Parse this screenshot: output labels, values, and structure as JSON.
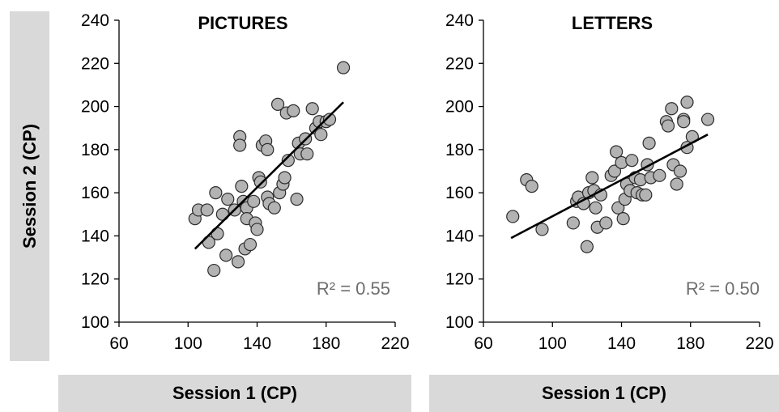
{
  "y_axis_label": "Session 2 (CP)",
  "x_axis_labels": [
    "Session 1 (CP)",
    "Session 1 (CP)"
  ],
  "chart_data": [
    {
      "type": "scatter",
      "title": "PICTURES",
      "xlabel": "Session 1 (CP)",
      "ylabel": "Session 2 (CP)",
      "xlim": [
        60,
        220
      ],
      "ylim": [
        100,
        240
      ],
      "xticks": [
        "60",
        "100",
        "140",
        "180",
        "220"
      ],
      "yticks": [
        "100",
        "120",
        "140",
        "160",
        "180",
        "200",
        "220",
        "240"
      ],
      "annotation": "R² = 0.55",
      "trendline": {
        "x": [
          104,
          190
        ],
        "y": [
          134,
          202
        ]
      },
      "grid": false,
      "points": [
        {
          "x": 104,
          "y": 148
        },
        {
          "x": 106,
          "y": 152
        },
        {
          "x": 111,
          "y": 152
        },
        {
          "x": 112,
          "y": 137
        },
        {
          "x": 115,
          "y": 124
        },
        {
          "x": 116,
          "y": 160
        },
        {
          "x": 117,
          "y": 141
        },
        {
          "x": 120,
          "y": 150
        },
        {
          "x": 122,
          "y": 131
        },
        {
          "x": 123,
          "y": 157
        },
        {
          "x": 127,
          "y": 152
        },
        {
          "x": 129,
          "y": 128
        },
        {
          "x": 130,
          "y": 186
        },
        {
          "x": 130,
          "y": 182
        },
        {
          "x": 131,
          "y": 163
        },
        {
          "x": 132,
          "y": 156
        },
        {
          "x": 133,
          "y": 134
        },
        {
          "x": 134,
          "y": 153
        },
        {
          "x": 134,
          "y": 148
        },
        {
          "x": 136,
          "y": 136
        },
        {
          "x": 138,
          "y": 156
        },
        {
          "x": 139,
          "y": 146
        },
        {
          "x": 140,
          "y": 143
        },
        {
          "x": 141,
          "y": 167
        },
        {
          "x": 142,
          "y": 165
        },
        {
          "x": 143,
          "y": 182
        },
        {
          "x": 145,
          "y": 184
        },
        {
          "x": 146,
          "y": 180
        },
        {
          "x": 146,
          "y": 158
        },
        {
          "x": 147,
          "y": 155
        },
        {
          "x": 150,
          "y": 153
        },
        {
          "x": 152,
          "y": 201
        },
        {
          "x": 153,
          "y": 160
        },
        {
          "x": 155,
          "y": 164
        },
        {
          "x": 156,
          "y": 167
        },
        {
          "x": 157,
          "y": 197
        },
        {
          "x": 158,
          "y": 175
        },
        {
          "x": 161,
          "y": 198
        },
        {
          "x": 163,
          "y": 157
        },
        {
          "x": 164,
          "y": 183
        },
        {
          "x": 165,
          "y": 178
        },
        {
          "x": 168,
          "y": 185
        },
        {
          "x": 169,
          "y": 178
        },
        {
          "x": 172,
          "y": 199
        },
        {
          "x": 174,
          "y": 190
        },
        {
          "x": 176,
          "y": 193
        },
        {
          "x": 177,
          "y": 187
        },
        {
          "x": 180,
          "y": 193
        },
        {
          "x": 182,
          "y": 194
        },
        {
          "x": 190,
          "y": 218
        }
      ]
    },
    {
      "type": "scatter",
      "title": "LETTERS",
      "xlabel": "Session 1 (CP)",
      "ylabel": "Session 2 (CP)",
      "xlim": [
        60,
        220
      ],
      "ylim": [
        100,
        240
      ],
      "xticks": [
        "60",
        "100",
        "140",
        "180",
        "220"
      ],
      "yticks": [
        "100",
        "120",
        "140",
        "160",
        "180",
        "200",
        "220",
        "240"
      ],
      "annotation": "R² = 0.50",
      "trendline": {
        "x": [
          76,
          190
        ],
        "y": [
          139,
          187
        ]
      },
      "grid": false,
      "points": [
        {
          "x": 77,
          "y": 149
        },
        {
          "x": 85,
          "y": 166
        },
        {
          "x": 88,
          "y": 163
        },
        {
          "x": 94,
          "y": 143
        },
        {
          "x": 112,
          "y": 146
        },
        {
          "x": 114,
          "y": 156
        },
        {
          "x": 115,
          "y": 158
        },
        {
          "x": 118,
          "y": 155
        },
        {
          "x": 120,
          "y": 135
        },
        {
          "x": 121,
          "y": 160
        },
        {
          "x": 123,
          "y": 167
        },
        {
          "x": 124,
          "y": 161
        },
        {
          "x": 125,
          "y": 153
        },
        {
          "x": 126,
          "y": 144
        },
        {
          "x": 128,
          "y": 159
        },
        {
          "x": 131,
          "y": 146
        },
        {
          "x": 134,
          "y": 168
        },
        {
          "x": 136,
          "y": 170
        },
        {
          "x": 137,
          "y": 179
        },
        {
          "x": 138,
          "y": 153
        },
        {
          "x": 140,
          "y": 174
        },
        {
          "x": 141,
          "y": 148
        },
        {
          "x": 142,
          "y": 157
        },
        {
          "x": 143,
          "y": 164
        },
        {
          "x": 145,
          "y": 161
        },
        {
          "x": 146,
          "y": 175
        },
        {
          "x": 148,
          "y": 167
        },
        {
          "x": 149,
          "y": 160
        },
        {
          "x": 151,
          "y": 166
        },
        {
          "x": 152,
          "y": 159
        },
        {
          "x": 154,
          "y": 159
        },
        {
          "x": 155,
          "y": 173
        },
        {
          "x": 156,
          "y": 183
        },
        {
          "x": 157,
          "y": 167
        },
        {
          "x": 162,
          "y": 168
        },
        {
          "x": 166,
          "y": 193
        },
        {
          "x": 167,
          "y": 191
        },
        {
          "x": 169,
          "y": 199
        },
        {
          "x": 170,
          "y": 173
        },
        {
          "x": 172,
          "y": 164
        },
        {
          "x": 174,
          "y": 170
        },
        {
          "x": 176,
          "y": 194
        },
        {
          "x": 176,
          "y": 193
        },
        {
          "x": 178,
          "y": 181
        },
        {
          "x": 178,
          "y": 202
        },
        {
          "x": 181,
          "y": 186
        },
        {
          "x": 190,
          "y": 194
        }
      ]
    }
  ]
}
